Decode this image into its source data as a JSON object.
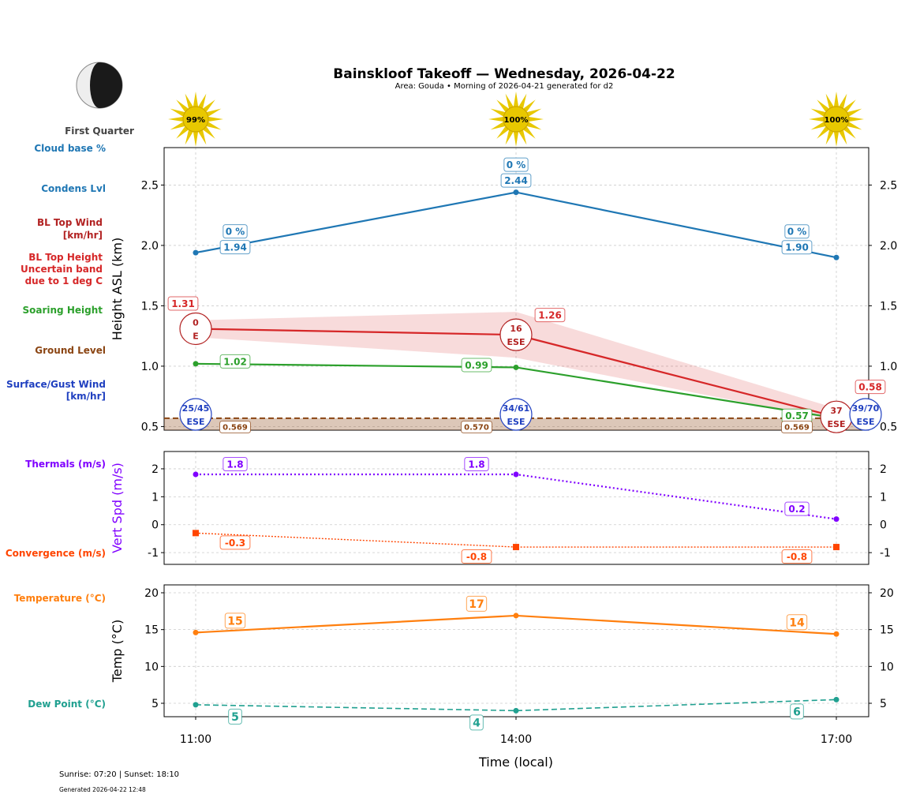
{
  "header": {
    "title": "Bainskloof Takeoff — Wednesday, 2026-04-22",
    "subtitle": "Area: Gouda • Morning of 2026-04-21 generated for d2",
    "moon_phase": "First Quarter",
    "sun_icon": "sun-icon",
    "moon_icon": "moon-icon"
  },
  "footer": {
    "sun_times": "Sunrise: 07:20 | Sunset: 18:10",
    "generated": "Generated 2026-04-22 12:48"
  },
  "side_labels": {
    "cloud_base": "Cloud base %",
    "condens": "Condens Lvl",
    "bl_wind_1": "BL Top Wind",
    "bl_wind_2": "[km/hr]",
    "bl_h_1": "BL Top Height",
    "bl_h_2": "Uncertain band",
    "bl_h_3": "due to 1 deg C",
    "soaring": "Soaring Height",
    "ground": "Ground Level",
    "surf_1": "Surface/Gust Wind",
    "surf_2": "[km/hr]",
    "thermals": "Thermals (m/s)",
    "convergence": "Convergence (m/s)",
    "temperature": "Temperature (°C)",
    "dewpoint": "Dew Point (°C)"
  },
  "colors": {
    "condens": "#1f77b4",
    "bl_top": "#d62728",
    "bl_wind": "#b22222",
    "soaring": "#2ca02c",
    "ground": "#8b4513",
    "surface": "#2040c0",
    "thermals": "#8000ff",
    "convergence": "#ff4500",
    "temperature": "#ff7f0e",
    "dewpoint": "#20a090"
  },
  "chart_data": [
    {
      "type": "line",
      "ylabel": "Height ASL (km)",
      "ylim": [
        0.47,
        2.81
      ],
      "yticks": [
        "0.5",
        "1.0",
        "1.5",
        "2.0",
        "2.5"
      ],
      "grid": true,
      "x": [
        "11:00",
        "14:00",
        "17:00"
      ],
      "sun_percent": [
        "99%",
        "100%",
        "100%"
      ],
      "cloud_base": [
        "0 %",
        "0 %",
        "0 %"
      ],
      "condens_lvl": [
        1.94,
        2.44,
        1.9
      ],
      "bl_top": [
        1.31,
        1.26,
        0.58
      ],
      "bl_band_upper": [
        1.38,
        1.45,
        0.65
      ],
      "bl_band_lower": [
        1.24,
        1.07,
        0.55
      ],
      "bl_wind": [
        {
          "speed": "0",
          "dir": "E"
        },
        {
          "speed": "16",
          "dir": "ESE"
        },
        {
          "speed": "37",
          "dir": "ESE"
        }
      ],
      "soaring": [
        1.02,
        0.99,
        0.57
      ],
      "ground": [
        0.569,
        0.57,
        0.569
      ],
      "surface_wind": [
        {
          "speed": "25/45",
          "dir": "ESE"
        },
        {
          "speed": "34/61",
          "dir": "ESE"
        },
        {
          "speed": "39/70",
          "dir": "ESE"
        }
      ]
    },
    {
      "type": "line",
      "ylabel": "Vert Spd (m/s)",
      "ylim": [
        -1.42,
        2.62
      ],
      "yticks": [
        "-1",
        "0",
        "1",
        "2"
      ],
      "grid": true,
      "thermals": [
        1.8,
        1.8,
        0.2
      ],
      "convergence": [
        -0.3,
        -0.8,
        -0.8
      ]
    },
    {
      "type": "line",
      "ylabel": "Temp (°C)",
      "xlabel": "Time (local)",
      "ylim": [
        3.18,
        21.07
      ],
      "yticks": [
        "5",
        "10",
        "15",
        "20"
      ],
      "grid": true,
      "temperature": [
        14.6,
        16.9,
        14.4
      ],
      "temperature_labels": [
        "15",
        "17",
        "14"
      ],
      "dewpoint": [
        4.8,
        4.0,
        5.5
      ],
      "dewpoint_labels": [
        "5",
        "4",
        "6"
      ],
      "xticks": [
        "11:00",
        "14:00",
        "17:00"
      ]
    }
  ]
}
